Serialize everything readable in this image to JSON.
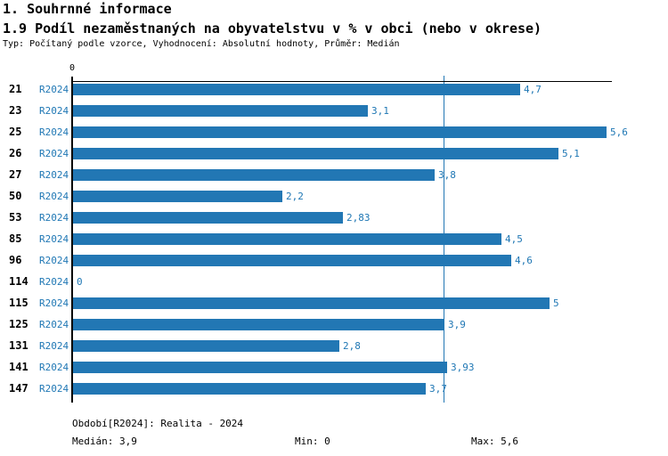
{
  "header": {
    "title1": "1. Souhrnné informace",
    "title2": "1.9 Podíl nezaměstnaných na obyvatelstvu v % v obci (nebo v okrese)",
    "description": "Typ: Počítaný podle vzorce, Vyhodnocení: Absolutní hodnoty, Průměr: Medián"
  },
  "chart_data": {
    "type": "bar",
    "orientation": "horizontal",
    "axis_zero_label": "0",
    "period_label": "R2024",
    "categories": [
      "21",
      "23",
      "25",
      "26",
      "27",
      "50",
      "53",
      "85",
      "96",
      "114",
      "115",
      "125",
      "131",
      "141",
      "147"
    ],
    "values": [
      4.7,
      3.1,
      5.6,
      5.1,
      3.8,
      2.2,
      2.83,
      4.5,
      4.6,
      0,
      5,
      3.9,
      2.8,
      3.93,
      3.7
    ],
    "value_labels": [
      "4,7",
      "3,1",
      "5,6",
      "5,1",
      "3,8",
      "2,2",
      "2,83",
      "4,5",
      "4,6",
      "0",
      "5",
      "3,9",
      "2,8",
      "3,93",
      "3,7"
    ],
    "median": 3.9,
    "xlim": [
      0,
      5.67
    ],
    "grid": "off",
    "legend": "none",
    "bar_color": "#2277b4",
    "median_line_color": "#2277b4",
    "label_color": "#1f77b4"
  },
  "footer": {
    "period": "Období[R2024]: Realita - 2024",
    "median": "Medián: 3,9",
    "min": "Min: 0",
    "max": "Max: 5,6"
  }
}
